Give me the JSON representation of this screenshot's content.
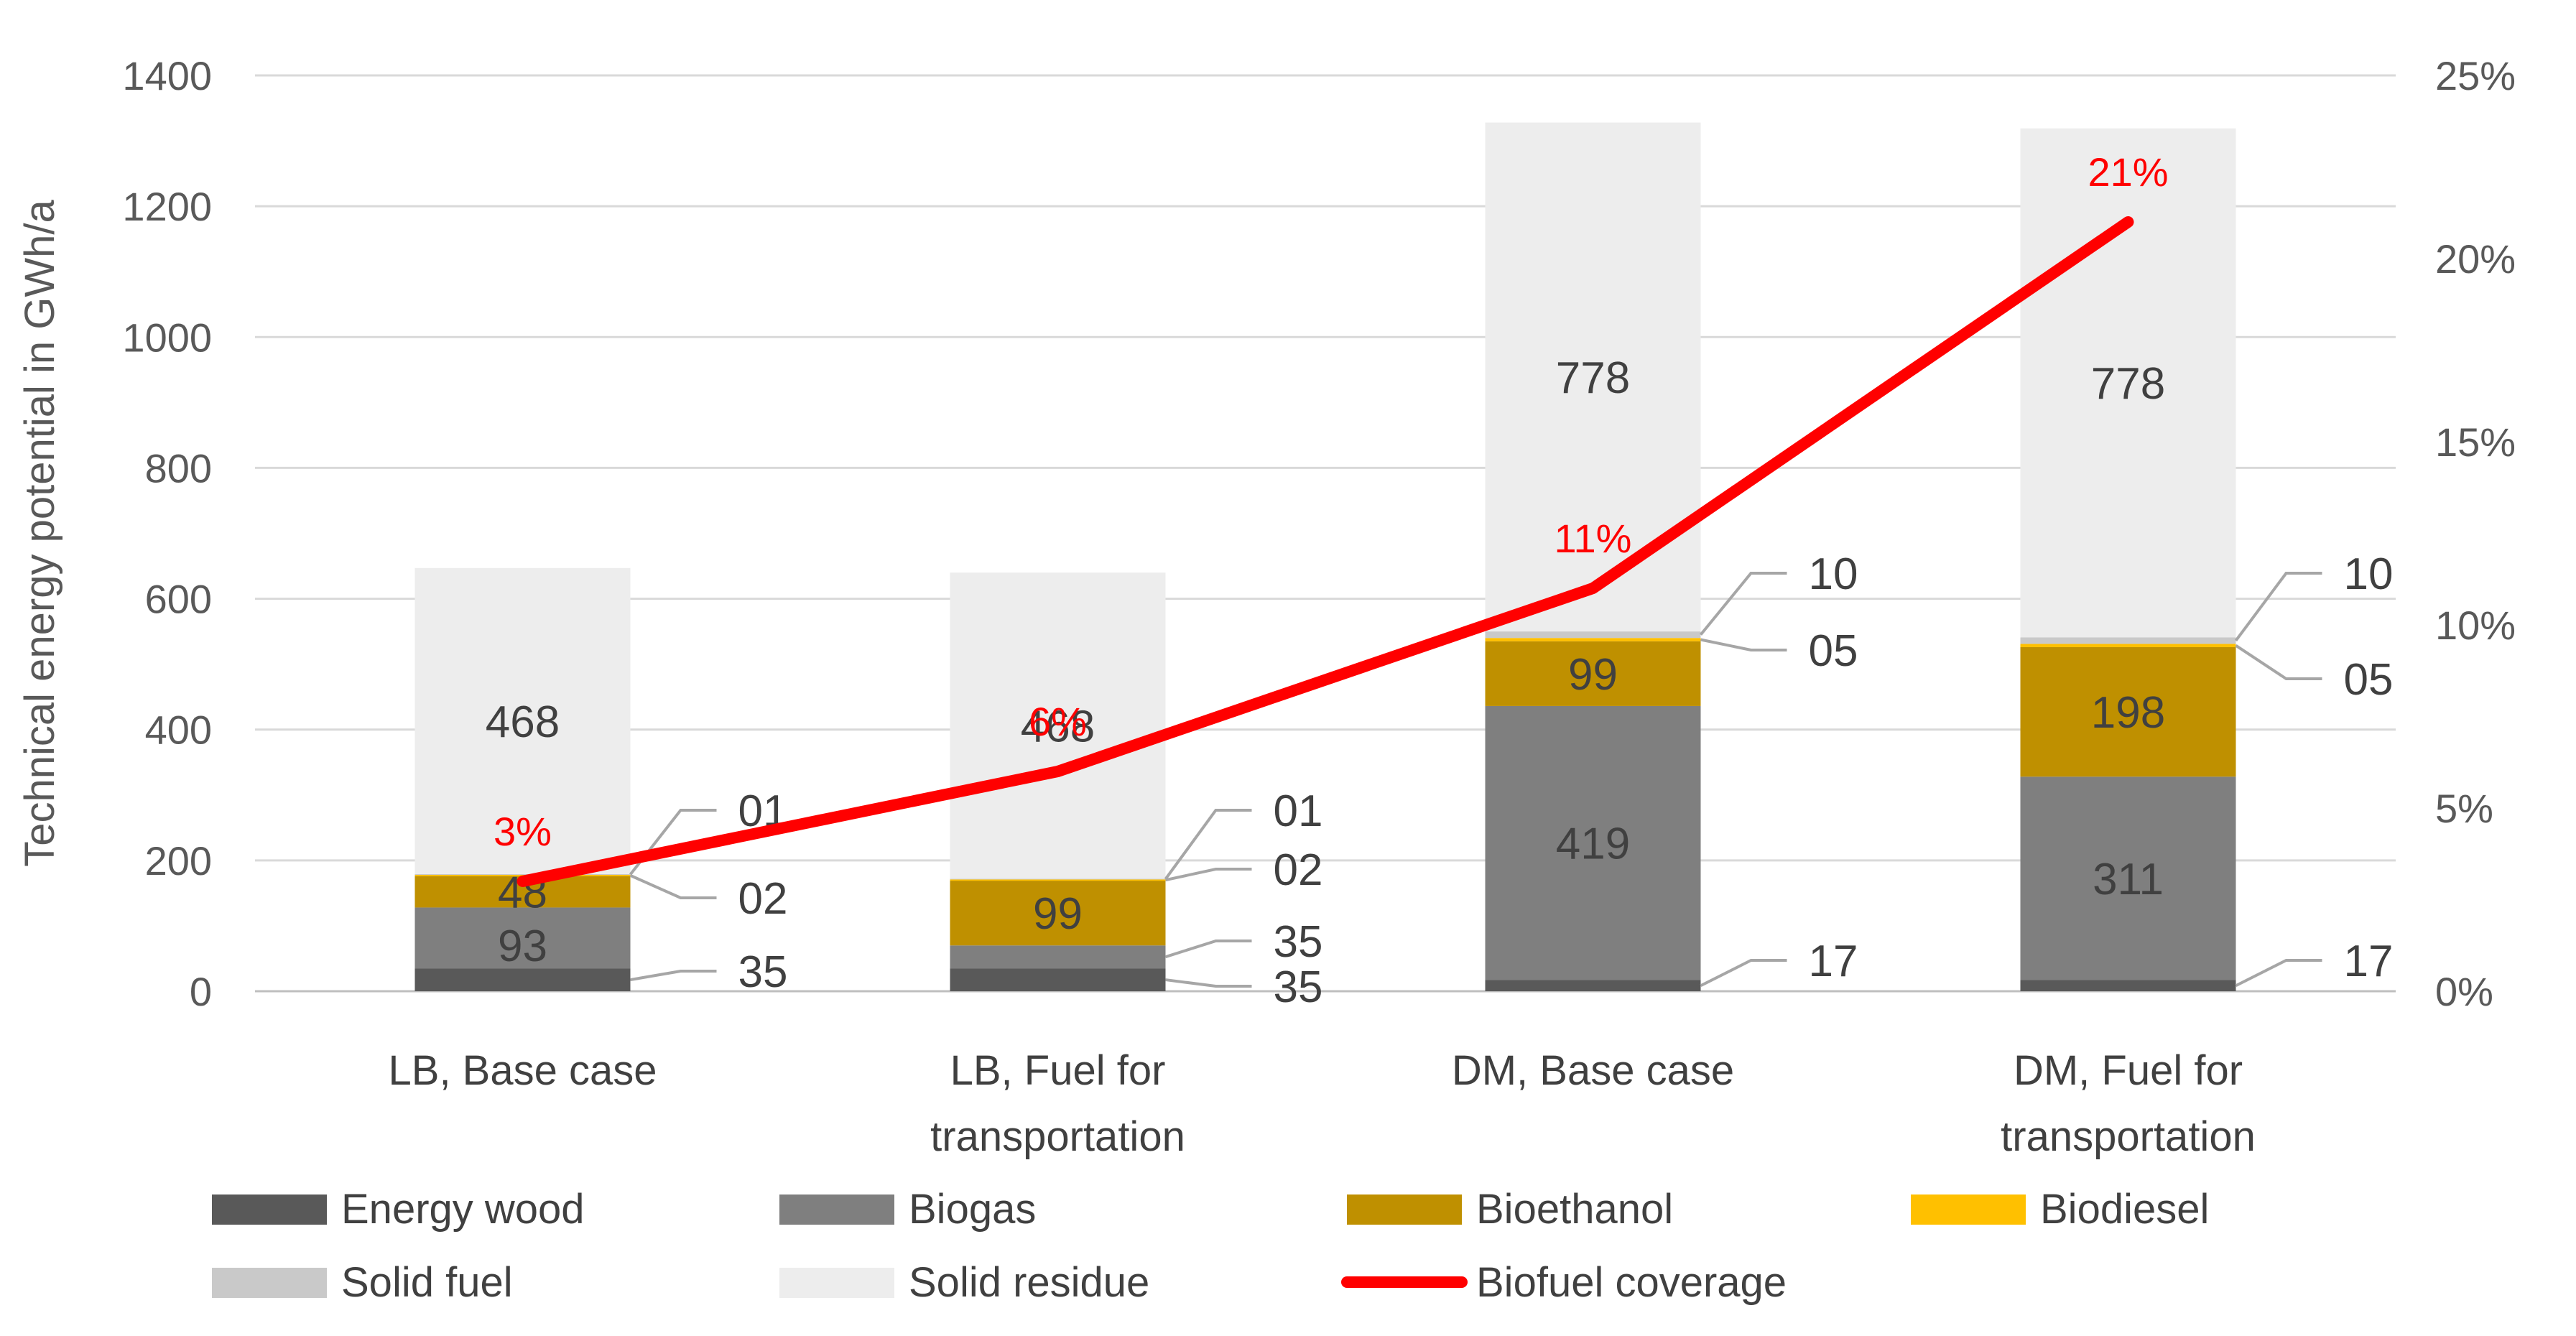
{
  "chart_data": {
    "type": "bar",
    "stacked": true,
    "categories": [
      [
        "LB, Base case"
      ],
      [
        "LB, Fuel for",
        "transportation"
      ],
      [
        "DM, Base case"
      ],
      [
        "DM, Fuel for",
        "transportation"
      ]
    ],
    "ylabel": "Technical energy potential in GWh/a",
    "ylim": [
      0,
      1400
    ],
    "yticks": [
      0,
      200,
      400,
      600,
      800,
      1000,
      1200,
      1400
    ],
    "y2lim": [
      0,
      25
    ],
    "y2ticks": [
      "0%",
      "5%",
      "10%",
      "15%",
      "20%",
      "25%"
    ],
    "grid": true,
    "legend_position": "bottom",
    "series": [
      {
        "name": "Energy wood",
        "color": "#595959",
        "values": [
          35,
          35,
          17,
          17
        ],
        "labels": [
          "35",
          "35",
          "17",
          "17"
        ]
      },
      {
        "name": "Biogas",
        "color": "#7f7f7f",
        "values": [
          93,
          35,
          419,
          311
        ],
        "labels": [
          "93",
          "35",
          "419",
          "311"
        ]
      },
      {
        "name": "Bioethanol",
        "color": "#bf9000",
        "values": [
          48,
          99,
          99,
          198
        ],
        "labels": [
          "48",
          "99",
          "99",
          "198"
        ]
      },
      {
        "name": "Biodiesel",
        "color": "#ffc000",
        "values": [
          2,
          2,
          5,
          5
        ],
        "labels": [
          "02",
          "02",
          "05",
          "05"
        ]
      },
      {
        "name": "Solid fuel",
        "color": "#c9c9c9",
        "values": [
          1,
          1,
          10,
          10
        ],
        "labels": [
          "01",
          "01",
          "10",
          "10"
        ]
      },
      {
        "name": "Solid residue",
        "color": "#ededed",
        "values": [
          468,
          468,
          778,
          778
        ],
        "labels": [
          "468",
          "468",
          "778",
          "778"
        ]
      }
    ],
    "line_series": {
      "name": "Biofuel coverage",
      "color": "#ff0000",
      "axis": "secondary",
      "values": [
        3,
        6,
        11,
        21
      ],
      "labels": [
        "3%",
        "6%",
        "11%",
        "21%"
      ]
    }
  }
}
